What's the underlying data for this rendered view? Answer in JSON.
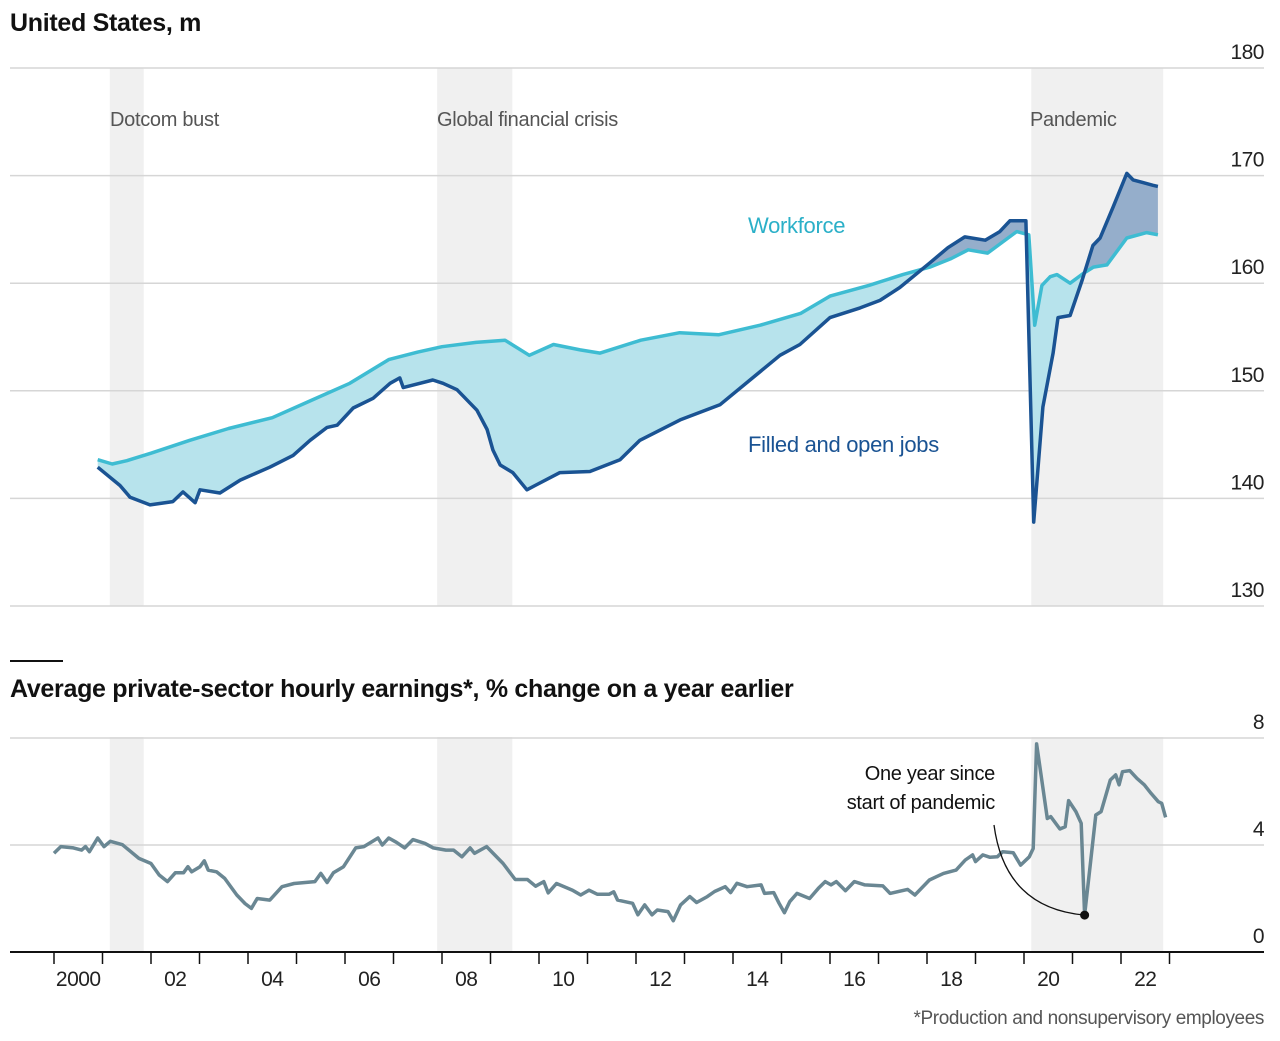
{
  "colors": {
    "workforce": "#3ebcd2",
    "filled": "#1a5393",
    "gap_light": "#b7e3ec",
    "gap_dark": "#95aecb",
    "earnings": "#6a8793",
    "recession_shade": "#f0f0f0",
    "grid": "#d6d6d6"
  },
  "chart_data": [
    {
      "type": "area",
      "title": "United States, m",
      "ylim": [
        130,
        180
      ],
      "yticks": [
        "180",
        "170",
        "160",
        "150",
        "140",
        "130"
      ],
      "grid": true,
      "recessions": [
        {
          "label": "Dotcom bust",
          "start": 2001.15,
          "end": 2001.85
        },
        {
          "label": "Global financial crisis",
          "start": 2007.9,
          "end": 2009.45
        },
        {
          "label": "Pandemic",
          "start": 2020.15,
          "end": 2022.87
        }
      ],
      "series": [
        {
          "name": "Workforce",
          "points": [
            [
              2000.9,
              143.6
            ],
            [
              2001.2,
              143.2
            ],
            [
              2001.5,
              143.5
            ],
            [
              2002.0,
              144.2
            ],
            [
              2002.8,
              145.4
            ],
            [
              2003.6,
              146.5
            ],
            [
              2004.5,
              147.5
            ],
            [
              2005.3,
              149.1
            ],
            [
              2006.1,
              150.7
            ],
            [
              2006.9,
              152.9
            ],
            [
              2007.5,
              153.6
            ],
            [
              2008.0,
              154.1
            ],
            [
              2008.7,
              154.5
            ],
            [
              2009.3,
              154.7
            ],
            [
              2009.8,
              153.3
            ],
            [
              2010.3,
              154.3
            ],
            [
              2010.85,
              153.8
            ],
            [
              2011.26,
              153.5
            ],
            [
              2012.1,
              154.7
            ],
            [
              2012.9,
              155.4
            ],
            [
              2013.7,
              155.2
            ],
            [
              2014.56,
              156.1
            ],
            [
              2015.4,
              157.2
            ],
            [
              2016.0,
              158.8
            ],
            [
              2016.8,
              159.8
            ],
            [
              2017.5,
              160.8
            ],
            [
              2018.06,
              161.5
            ],
            [
              2018.5,
              162.3
            ],
            [
              2018.85,
              163.1
            ],
            [
              2019.25,
              162.8
            ],
            [
              2019.85,
              164.8
            ],
            [
              2020.1,
              164.5
            ],
            [
              2020.22,
              156.1
            ],
            [
              2020.37,
              159.8
            ],
            [
              2020.54,
              160.6
            ],
            [
              2020.68,
              160.8
            ],
            [
              2020.95,
              160.0
            ],
            [
              2021.22,
              160.9
            ],
            [
              2021.43,
              161.5
            ],
            [
              2021.71,
              161.7
            ],
            [
              2022.12,
              164.2
            ],
            [
              2022.53,
              164.7
            ],
            [
              2022.76,
              164.5
            ]
          ]
        },
        {
          "name": "Filled and open jobs",
          "points": [
            [
              2000.9,
              142.9
            ],
            [
              2001.36,
              141.2
            ],
            [
              2001.57,
              140.1
            ],
            [
              2001.98,
              139.4
            ],
            [
              2002.45,
              139.7
            ],
            [
              2002.66,
              140.6
            ],
            [
              2002.91,
              139.6
            ],
            [
              2003.01,
              140.8
            ],
            [
              2003.42,
              140.5
            ],
            [
              2003.84,
              141.7
            ],
            [
              2004.45,
              142.9
            ],
            [
              2004.93,
              144.0
            ],
            [
              2005.28,
              145.4
            ],
            [
              2005.63,
              146.6
            ],
            [
              2005.84,
              146.8
            ],
            [
              2006.17,
              148.4
            ],
            [
              2006.58,
              149.3
            ],
            [
              2006.93,
              150.7
            ],
            [
              2007.13,
              151.2
            ],
            [
              2007.2,
              150.3
            ],
            [
              2007.81,
              151.0
            ],
            [
              2008.02,
              150.7
            ],
            [
              2008.31,
              150.1
            ],
            [
              2008.72,
              148.2
            ],
            [
              2008.93,
              146.4
            ],
            [
              2009.05,
              144.5
            ],
            [
              2009.2,
              143.1
            ],
            [
              2009.46,
              142.4
            ],
            [
              2009.75,
              140.8
            ],
            [
              2009.92,
              141.2
            ],
            [
              2010.43,
              142.4
            ],
            [
              2011.05,
              142.5
            ],
            [
              2011.67,
              143.6
            ],
            [
              2012.08,
              145.4
            ],
            [
              2012.91,
              147.3
            ],
            [
              2013.73,
              148.7
            ],
            [
              2014.35,
              151.0
            ],
            [
              2014.97,
              153.3
            ],
            [
              2015.38,
              154.3
            ],
            [
              2016.0,
              156.8
            ],
            [
              2016.62,
              157.7
            ],
            [
              2017.03,
              158.4
            ],
            [
              2017.44,
              159.6
            ],
            [
              2018.06,
              161.9
            ],
            [
              2018.43,
              163.3
            ],
            [
              2018.78,
              164.3
            ],
            [
              2019.2,
              164.0
            ],
            [
              2019.5,
              164.8
            ],
            [
              2019.71,
              165.8
            ],
            [
              2020.04,
              165.8
            ],
            [
              2020.2,
              137.8
            ],
            [
              2020.39,
              148.5
            ],
            [
              2020.6,
              153.5
            ],
            [
              2020.7,
              156.8
            ],
            [
              2020.95,
              157.0
            ],
            [
              2021.2,
              160.3
            ],
            [
              2021.42,
              163.5
            ],
            [
              2021.57,
              164.2
            ],
            [
              2021.84,
              167.1
            ],
            [
              2022.12,
              170.2
            ],
            [
              2022.25,
              169.6
            ],
            [
              2022.66,
              169.1
            ],
            [
              2022.76,
              169.0
            ]
          ]
        }
      ]
    },
    {
      "type": "line",
      "title": "Average private-sector hourly earnings*, % change on a year earlier",
      "ylim": [
        0,
        8
      ],
      "yticks": [
        "8",
        "4",
        "0"
      ],
      "grid": true,
      "xlim": [
        2000,
        2023
      ],
      "xticks": [
        "2000",
        "02",
        "04",
        "06",
        "08",
        "10",
        "12",
        "14",
        "16",
        "18",
        "20",
        "22"
      ],
      "annotation": {
        "text_line1": "One year since",
        "text_line2": "start of pandemic",
        "x": 2021.25,
        "y": 1.38
      },
      "footnote": "*Production and nonsupervisory employees",
      "series": [
        {
          "points": [
            [
              2000.0,
              3.69
            ],
            [
              2000.14,
              3.94
            ],
            [
              2000.4,
              3.89
            ],
            [
              2000.57,
              3.81
            ],
            [
              2000.65,
              3.94
            ],
            [
              2000.73,
              3.75
            ],
            [
              2000.9,
              4.26
            ],
            [
              2001.03,
              3.94
            ],
            [
              2001.16,
              4.14
            ],
            [
              2001.41,
              4.01
            ],
            [
              2001.75,
              3.5
            ],
            [
              2002.0,
              3.31
            ],
            [
              2002.17,
              2.88
            ],
            [
              2002.34,
              2.63
            ],
            [
              2002.5,
              2.96
            ],
            [
              2002.67,
              2.96
            ],
            [
              2002.76,
              3.19
            ],
            [
              2002.84,
              3.0
            ],
            [
              2003.01,
              3.19
            ],
            [
              2003.1,
              3.41
            ],
            [
              2003.18,
              3.06
            ],
            [
              2003.35,
              3.0
            ],
            [
              2003.52,
              2.75
            ],
            [
              2003.77,
              2.13
            ],
            [
              2003.94,
              1.81
            ],
            [
              2004.07,
              1.63
            ],
            [
              2004.19,
              2.0
            ],
            [
              2004.45,
              1.94
            ],
            [
              2004.7,
              2.44
            ],
            [
              2004.95,
              2.56
            ],
            [
              2005.38,
              2.63
            ],
            [
              2005.5,
              2.94
            ],
            [
              2005.63,
              2.6
            ],
            [
              2005.76,
              2.96
            ],
            [
              2005.97,
              3.19
            ],
            [
              2006.22,
              3.89
            ],
            [
              2006.39,
              3.94
            ],
            [
              2006.68,
              4.26
            ],
            [
              2006.77,
              4.0
            ],
            [
              2006.9,
              4.26
            ],
            [
              2007.06,
              4.1
            ],
            [
              2007.23,
              3.89
            ],
            [
              2007.4,
              4.2
            ],
            [
              2007.65,
              4.06
            ],
            [
              2007.82,
              3.89
            ],
            [
              2008.08,
              3.81
            ],
            [
              2008.24,
              3.81
            ],
            [
              2008.41,
              3.56
            ],
            [
              2008.58,
              3.89
            ],
            [
              2008.67,
              3.69
            ],
            [
              2008.92,
              3.94
            ],
            [
              2009.26,
              3.31
            ],
            [
              2009.51,
              2.71
            ],
            [
              2009.76,
              2.71
            ],
            [
              2009.93,
              2.46
            ],
            [
              2010.1,
              2.63
            ],
            [
              2010.19,
              2.21
            ],
            [
              2010.36,
              2.56
            ],
            [
              2010.69,
              2.31
            ],
            [
              2010.86,
              2.13
            ],
            [
              2011.03,
              2.31
            ],
            [
              2011.2,
              2.16
            ],
            [
              2011.45,
              2.16
            ],
            [
              2011.54,
              2.25
            ],
            [
              2011.62,
              1.94
            ],
            [
              2011.93,
              1.82
            ],
            [
              2012.04,
              1.39
            ],
            [
              2012.18,
              1.76
            ],
            [
              2012.33,
              1.39
            ],
            [
              2012.44,
              1.57
            ],
            [
              2012.66,
              1.51
            ],
            [
              2012.77,
              1.17
            ],
            [
              2012.92,
              1.76
            ],
            [
              2013.11,
              2.07
            ],
            [
              2013.25,
              1.85
            ],
            [
              2013.47,
              2.07
            ],
            [
              2013.62,
              2.26
            ],
            [
              2013.84,
              2.44
            ],
            [
              2013.95,
              2.22
            ],
            [
              2014.08,
              2.57
            ],
            [
              2014.29,
              2.44
            ],
            [
              2014.58,
              2.51
            ],
            [
              2014.65,
              2.19
            ],
            [
              2014.84,
              2.22
            ],
            [
              2014.95,
              1.82
            ],
            [
              2015.06,
              1.47
            ],
            [
              2015.17,
              1.88
            ],
            [
              2015.32,
              2.19
            ],
            [
              2015.58,
              2.0
            ],
            [
              2015.76,
              2.38
            ],
            [
              2015.9,
              2.63
            ],
            [
              2016.02,
              2.51
            ],
            [
              2016.13,
              2.63
            ],
            [
              2016.32,
              2.29
            ],
            [
              2016.5,
              2.63
            ],
            [
              2016.72,
              2.51
            ],
            [
              2017.09,
              2.47
            ],
            [
              2017.24,
              2.19
            ],
            [
              2017.6,
              2.34
            ],
            [
              2017.75,
              2.13
            ],
            [
              2018.05,
              2.69
            ],
            [
              2018.2,
              2.82
            ],
            [
              2018.34,
              2.94
            ],
            [
              2018.6,
              3.06
            ],
            [
              2018.79,
              3.44
            ],
            [
              2018.94,
              3.63
            ],
            [
              2019.0,
              3.38
            ],
            [
              2019.15,
              3.63
            ],
            [
              2019.3,
              3.54
            ],
            [
              2019.45,
              3.56
            ],
            [
              2019.56,
              3.75
            ],
            [
              2019.78,
              3.71
            ],
            [
              2019.93,
              3.25
            ],
            [
              2020.11,
              3.56
            ],
            [
              2020.19,
              3.87
            ],
            [
              2020.26,
              7.78
            ],
            [
              2020.48,
              4.99
            ],
            [
              2020.55,
              5.06
            ],
            [
              2020.74,
              4.6
            ],
            [
              2020.85,
              4.68
            ],
            [
              2020.92,
              5.66
            ],
            [
              2021.07,
              5.25
            ],
            [
              2021.18,
              4.81
            ],
            [
              2021.25,
              1.38
            ],
            [
              2021.37,
              3.31
            ],
            [
              2021.48,
              5.12
            ],
            [
              2021.59,
              5.25
            ],
            [
              2021.78,
              6.43
            ],
            [
              2021.89,
              6.62
            ],
            [
              2021.96,
              6.25
            ],
            [
              2022.03,
              6.74
            ],
            [
              2022.18,
              6.78
            ],
            [
              2022.33,
              6.49
            ],
            [
              2022.48,
              6.25
            ],
            [
              2022.62,
              5.93
            ],
            [
              2022.77,
              5.62
            ],
            [
              2022.84,
              5.56
            ],
            [
              2022.92,
              5.03
            ]
          ]
        }
      ]
    }
  ]
}
